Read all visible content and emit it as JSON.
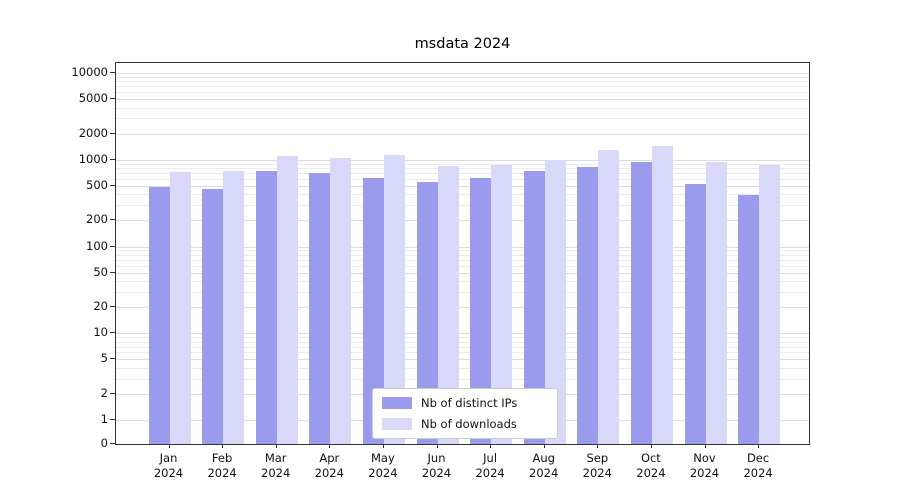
{
  "chart_data": {
    "type": "bar",
    "title": "msdata 2024",
    "categories": [
      "Jan",
      "Feb",
      "Mar",
      "Apr",
      "May",
      "Jun",
      "Jul",
      "Aug",
      "Sep",
      "Oct",
      "Nov",
      "Dec"
    ],
    "year_label": "2024",
    "series": [
      {
        "name": "Nb of distinct IPs",
        "color": "#9b9bee",
        "values": [
          480,
          460,
          740,
          700,
          620,
          560,
          620,
          750,
          830,
          930,
          520,
          390
        ]
      },
      {
        "name": "Nb of downloads",
        "color": "#d8d8f8",
        "values": [
          730,
          740,
          1100,
          1050,
          1150,
          850,
          880,
          1000,
          1300,
          1450,
          950,
          880
        ]
      }
    ],
    "yscale": "symlog",
    "yticks": [
      10000,
      5000,
      2000,
      1000,
      500,
      200,
      100,
      50,
      20,
      10,
      5,
      2,
      1,
      0
    ],
    "ylim": [
      0,
      13000
    ],
    "grid": true,
    "legend_position": "lower center",
    "colors": {
      "grid_major": "#dcdcdc",
      "grid_minor": "#ebebeb",
      "axis": "#333333"
    }
  }
}
